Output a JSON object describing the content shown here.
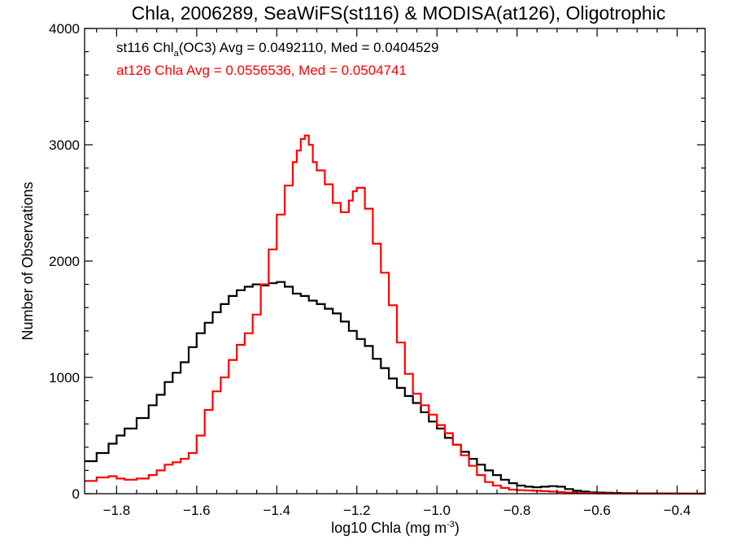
{
  "chart_data": {
    "type": "line",
    "title": "Chla, 2006289, SeaWiFS(st116) & MODISA(at126), Oligotrophic",
    "xlabel": "log10 Chla (mg m",
    "xlabel_sup": "-3",
    "xlabel_close": ")",
    "ylabel": "Number of Observations",
    "xlim": [
      -1.88,
      -0.33
    ],
    "ylim": [
      0,
      4000
    ],
    "xticks": [
      -1.8,
      -1.6,
      -1.4,
      -1.2,
      -1.0,
      -0.8,
      -0.6,
      -0.4
    ],
    "xtick_labels": [
      "−1.8",
      "−1.6",
      "−1.4",
      "−1.2",
      "−1.0",
      "−0.8",
      "−0.6",
      "−0.4"
    ],
    "yticks": [
      0,
      1000,
      2000,
      3000,
      4000
    ],
    "ytick_labels": [
      "0",
      "1000",
      "2000",
      "3000",
      "4000"
    ],
    "grid": false,
    "annotations": [
      {
        "pre": "st116 Chl",
        "sub": "a",
        "post": "(OC3) Avg = 0.0492110, Med = 0.0404529",
        "color": "#000000"
      },
      {
        "pre": "at126 Chla Avg = 0.0556536, Med = 0.0504741",
        "sub": "",
        "post": "",
        "color": "#ff0000"
      }
    ],
    "series": [
      {
        "color": "#000000",
        "x": [
          -1.88,
          -1.85,
          -1.82,
          -1.8,
          -1.78,
          -1.75,
          -1.72,
          -1.7,
          -1.68,
          -1.66,
          -1.64,
          -1.62,
          -1.6,
          -1.58,
          -1.56,
          -1.54,
          -1.52,
          -1.5,
          -1.48,
          -1.46,
          -1.44,
          -1.42,
          -1.4,
          -1.38,
          -1.36,
          -1.34,
          -1.32,
          -1.3,
          -1.28,
          -1.26,
          -1.24,
          -1.22,
          -1.2,
          -1.18,
          -1.16,
          -1.14,
          -1.12,
          -1.1,
          -1.08,
          -1.06,
          -1.04,
          -1.02,
          -1.0,
          -0.98,
          -0.96,
          -0.94,
          -0.92,
          -0.9,
          -0.88,
          -0.86,
          -0.84,
          -0.82,
          -0.8,
          -0.78,
          -0.76,
          -0.74,
          -0.72,
          -0.7,
          -0.68,
          -0.66,
          -0.64,
          -0.62,
          -0.6,
          -0.58,
          -0.56,
          -0.54,
          -0.52,
          -0.5,
          -0.45,
          -0.4,
          -0.33
        ],
        "y": [
          280,
          350,
          430,
          500,
          560,
          650,
          760,
          850,
          960,
          1040,
          1130,
          1260,
          1380,
          1470,
          1560,
          1630,
          1700,
          1750,
          1780,
          1800,
          1790,
          1810,
          1820,
          1780,
          1720,
          1700,
          1660,
          1630,
          1590,
          1550,
          1480,
          1400,
          1330,
          1270,
          1160,
          1080,
          990,
          910,
          840,
          780,
          700,
          620,
          560,
          480,
          420,
          360,
          300,
          250,
          200,
          160,
          120,
          90,
          70,
          60,
          55,
          60,
          65,
          60,
          40,
          25,
          18,
          12,
          10,
          8,
          6,
          5,
          4,
          3,
          2,
          1,
          0
        ]
      },
      {
        "color": "#ff0000",
        "x": [
          -1.88,
          -1.85,
          -1.82,
          -1.8,
          -1.78,
          -1.75,
          -1.72,
          -1.7,
          -1.68,
          -1.66,
          -1.64,
          -1.62,
          -1.6,
          -1.58,
          -1.56,
          -1.54,
          -1.52,
          -1.5,
          -1.48,
          -1.46,
          -1.44,
          -1.42,
          -1.4,
          -1.38,
          -1.36,
          -1.35,
          -1.34,
          -1.33,
          -1.32,
          -1.31,
          -1.3,
          -1.28,
          -1.26,
          -1.24,
          -1.22,
          -1.21,
          -1.2,
          -1.18,
          -1.16,
          -1.14,
          -1.12,
          -1.1,
          -1.08,
          -1.06,
          -1.04,
          -1.02,
          -1.0,
          -0.98,
          -0.96,
          -0.94,
          -0.92,
          -0.9,
          -0.88,
          -0.86,
          -0.84,
          -0.82,
          -0.8,
          -0.78,
          -0.76,
          -0.74,
          -0.72,
          -0.7,
          -0.68,
          -0.66,
          -0.64,
          -0.62,
          -0.6,
          -0.55,
          -0.5,
          -0.4,
          -0.33
        ],
        "y": [
          110,
          140,
          150,
          130,
          120,
          130,
          160,
          200,
          250,
          270,
          300,
          350,
          500,
          720,
          880,
          1000,
          1150,
          1280,
          1380,
          1540,
          1800,
          2100,
          2400,
          2650,
          2850,
          2950,
          3050,
          3080,
          3000,
          2850,
          2780,
          2660,
          2500,
          2420,
          2520,
          2600,
          2630,
          2450,
          2150,
          1900,
          1620,
          1300,
          1030,
          860,
          760,
          680,
          590,
          520,
          420,
          330,
          240,
          160,
          100,
          70,
          50,
          35,
          30,
          28,
          25,
          22,
          18,
          14,
          10,
          8,
          6,
          4,
          3,
          2,
          1,
          0,
          0
        ]
      }
    ]
  }
}
